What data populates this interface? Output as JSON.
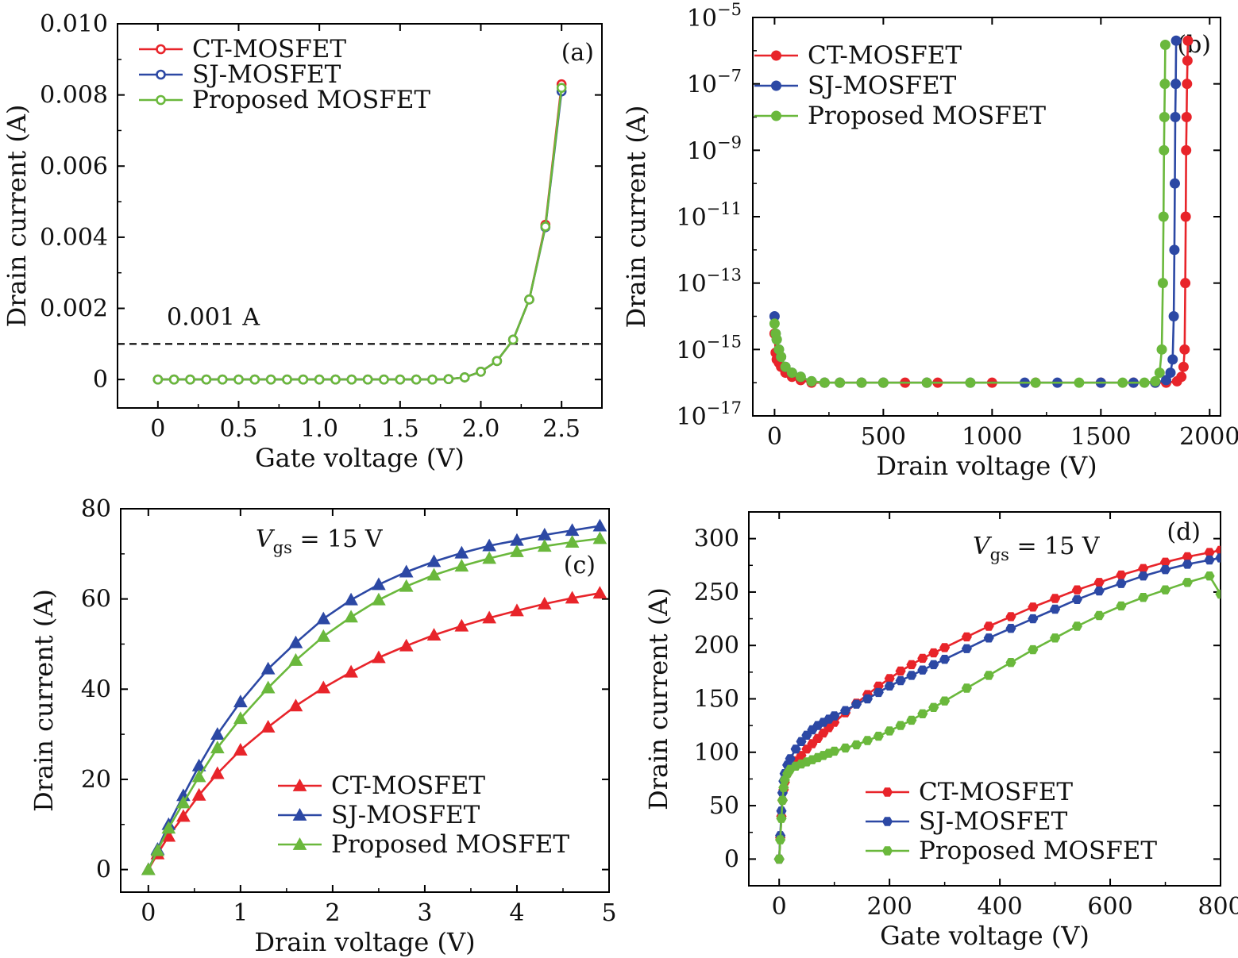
{
  "colors": {
    "ct": "#e8242a",
    "sj": "#2c48a4",
    "prop": "#6ab83c",
    "axis": "#000000"
  },
  "chart_data": [
    {
      "id": "a",
      "type": "line",
      "panel_label": "(a)",
      "xlabel": "Gate voltage (V)",
      "ylabel": "Drain current (A)",
      "xlim": [
        -0.25,
        2.75
      ],
      "ylim": [
        -0.0008,
        0.01
      ],
      "yscale": "linear",
      "x_ticks": [
        0,
        0.5,
        1.0,
        1.5,
        2.0,
        2.5
      ],
      "x_tick_labels": [
        "0",
        "0.5",
        "1.0",
        "1.5",
        "2.0",
        "2.5"
      ],
      "y_ticks": [
        0,
        0.002,
        0.004,
        0.006,
        0.008,
        0.01
      ],
      "y_tick_labels": [
        "0",
        "0.002",
        "0.004",
        "0.006",
        "0.008",
        "0.010"
      ],
      "marker": "open-circle",
      "legend_position": "top-left",
      "reference_line": {
        "y": 0.001,
        "label": "0.001 A",
        "style": "dashed"
      },
      "series": [
        {
          "name": "CT-MOSFET",
          "color": "#e8242a",
          "x": [
            0,
            0.1,
            0.2,
            0.3,
            0.4,
            0.5,
            0.6,
            0.7,
            0.8,
            0.9,
            1.0,
            1.1,
            1.2,
            1.3,
            1.4,
            1.5,
            1.6,
            1.7,
            1.8,
            1.9,
            2.0,
            2.1,
            2.2,
            2.3,
            2.4,
            2.5
          ],
          "y": [
            0,
            0,
            0,
            0,
            0,
            0,
            0,
            0,
            0,
            0,
            0,
            0,
            0,
            0,
            0,
            0,
            0,
            0,
            1e-05,
            6e-05,
            0.00022,
            0.00052,
            0.00112,
            0.00225,
            0.00435,
            0.0083
          ]
        },
        {
          "name": "SJ-MOSFET",
          "color": "#2c48a4",
          "x": [
            0,
            0.1,
            0.2,
            0.3,
            0.4,
            0.5,
            0.6,
            0.7,
            0.8,
            0.9,
            1.0,
            1.1,
            1.2,
            1.3,
            1.4,
            1.5,
            1.6,
            1.7,
            1.8,
            1.9,
            2.0,
            2.1,
            2.2,
            2.3,
            2.4,
            2.5
          ],
          "y": [
            0,
            0,
            0,
            0,
            0,
            0,
            0,
            0,
            0,
            0,
            0,
            0,
            0,
            0,
            0,
            0,
            0,
            0,
            1e-05,
            6e-05,
            0.00022,
            0.00052,
            0.00112,
            0.00225,
            0.00428,
            0.0081
          ]
        },
        {
          "name": "Proposed MOSFET",
          "color": "#6ab83c",
          "x": [
            0,
            0.1,
            0.2,
            0.3,
            0.4,
            0.5,
            0.6,
            0.7,
            0.8,
            0.9,
            1.0,
            1.1,
            1.2,
            1.3,
            1.4,
            1.5,
            1.6,
            1.7,
            1.8,
            1.9,
            2.0,
            2.1,
            2.2,
            2.3,
            2.4,
            2.5
          ],
          "y": [
            0,
            0,
            0,
            0,
            0,
            0,
            0,
            0,
            0,
            0,
            0,
            0,
            0,
            0,
            0,
            0,
            0,
            0,
            1e-05,
            6e-05,
            0.00022,
            0.00052,
            0.00112,
            0.00225,
            0.0043,
            0.0082
          ]
        }
      ]
    },
    {
      "id": "b",
      "type": "line",
      "panel_label": "(b)",
      "xlabel": "Drain voltage (V)",
      "ylabel": "Drain current (A)",
      "xlim": [
        -100,
        2050
      ],
      "ylim": [
        1e-17,
        1e-05
      ],
      "yscale": "log",
      "x_ticks": [
        0,
        500,
        1000,
        1500,
        2000
      ],
      "x_tick_labels": [
        "0",
        "500",
        "1000",
        "1500",
        "2000"
      ],
      "y_ticks": [
        1e-17,
        1e-15,
        1e-13,
        1e-11,
        1e-09,
        1e-07,
        1e-05
      ],
      "y_tick_bases": [
        "10",
        "10",
        "10",
        "10",
        "10",
        "10",
        "10"
      ],
      "y_tick_exponents": [
        "−17",
        "−15",
        "−13",
        "−11",
        "−9",
        "−7",
        "−5"
      ],
      "marker": "filled-circle",
      "legend_position": "top-left",
      "series": [
        {
          "name": "CT-MOSFET",
          "color": "#e8242a",
          "x": [
            0,
            5,
            10,
            20,
            30,
            50,
            80,
            120,
            170,
            230,
            300,
            400,
            500,
            600,
            700,
            750,
            1000,
            1200,
            1500,
            1650,
            1750,
            1800,
            1850,
            1870,
            1880,
            1885,
            1888,
            1890,
            1892,
            1894,
            1896,
            1898,
            1900
          ],
          "y": [
            3e-15,
            8e-16,
            5e-16,
            4e-16,
            3e-16,
            2e-16,
            1.5e-16,
            1.2e-16,
            1e-16,
            1e-16,
            1e-16,
            1e-16,
            1e-16,
            1e-16,
            1e-16,
            1e-16,
            1e-16,
            1e-16,
            1e-16,
            1e-16,
            1e-16,
            1e-16,
            1.1e-16,
            1.5e-16,
            3e-16,
            1e-15,
            1e-13,
            1e-11,
            1e-09,
            1e-08,
            1e-07,
            5e-07,
            2e-06
          ]
        },
        {
          "name": "SJ-MOSFET",
          "color": "#2c48a4",
          "x": [
            0,
            5,
            10,
            20,
            30,
            50,
            80,
            120,
            170,
            230,
            300,
            400,
            500,
            700,
            900,
            1150,
            1300,
            1500,
            1650,
            1750,
            1800,
            1820,
            1830,
            1835,
            1838,
            1840,
            1842,
            1844,
            1846
          ],
          "y": [
            1e-14,
            3e-15,
            2e-15,
            1e-15,
            6e-16,
            3e-16,
            2e-16,
            1.5e-16,
            1.1e-16,
            1e-16,
            1e-16,
            1e-16,
            1e-16,
            1e-16,
            1e-16,
            1e-16,
            1e-16,
            1e-16,
            1e-16,
            1e-16,
            1.2e-16,
            2e-16,
            5e-16,
            1e-14,
            1e-12,
            1e-10,
            1e-08,
            1e-07,
            2e-06
          ]
        },
        {
          "name": "Proposed MOSFET",
          "color": "#6ab83c",
          "x": [
            0,
            5,
            10,
            20,
            30,
            50,
            80,
            120,
            170,
            230,
            300,
            400,
            500,
            700,
            900,
            1200,
            1400,
            1600,
            1700,
            1750,
            1770,
            1780,
            1785,
            1788,
            1790,
            1792,
            1794,
            1796
          ],
          "y": [
            6e-15,
            3e-15,
            2e-15,
            1e-15,
            6e-16,
            3e-16,
            2e-16,
            1.5e-16,
            1.1e-16,
            1e-16,
            1e-16,
            1e-16,
            1e-16,
            1e-16,
            1e-16,
            1e-16,
            1e-16,
            1e-16,
            1e-16,
            1.1e-16,
            2e-16,
            1e-15,
            1e-13,
            1e-11,
            1e-09,
            1e-08,
            1e-07,
            1.5e-06
          ]
        }
      ]
    },
    {
      "id": "c",
      "type": "line",
      "panel_label": "(c)",
      "annotation": {
        "base": "V",
        "subscript": "gs",
        "rest": " = 15 V"
      },
      "xlabel": "Drain voltage (V)",
      "ylabel": "Drain current (A)",
      "xlim": [
        -0.3,
        5.0
      ],
      "ylim": [
        -5,
        80
      ],
      "yscale": "linear",
      "x_ticks": [
        0,
        1,
        2,
        3,
        4,
        5
      ],
      "x_tick_labels": [
        "0",
        "1",
        "2",
        "3",
        "4",
        "5"
      ],
      "y_ticks": [
        0,
        20,
        40,
        60,
        80
      ],
      "y_tick_labels": [
        "0",
        "20",
        "40",
        "60",
        "80"
      ],
      "marker": "filled-triangle",
      "legend_position": "bottom-right",
      "series": [
        {
          "name": "CT-MOSFET",
          "color": "#e8242a",
          "x": [
            0,
            0.1,
            0.22,
            0.38,
            0.55,
            0.75,
            1.0,
            1.3,
            1.6,
            1.9,
            2.2,
            2.5,
            2.8,
            3.1,
            3.4,
            3.7,
            4.0,
            4.3,
            4.6,
            4.9
          ],
          "y": [
            0,
            3.5,
            7.4,
            11.8,
            16.5,
            21.3,
            26.5,
            31.6,
            36.3,
            40.3,
            43.8,
            47.0,
            49.6,
            52.0,
            54.0,
            55.8,
            57.4,
            58.9,
            60.2,
            61.3
          ]
        },
        {
          "name": "SJ-MOSFET",
          "color": "#2c48a4",
          "x": [
            0,
            0.1,
            0.22,
            0.38,
            0.55,
            0.75,
            1.0,
            1.3,
            1.6,
            1.9,
            2.2,
            2.5,
            2.8,
            3.1,
            3.4,
            3.7,
            4.0,
            4.3,
            4.6,
            4.9
          ],
          "y": [
            0,
            4.5,
            10.0,
            16.4,
            23.0,
            30.0,
            37.2,
            44.5,
            50.3,
            55.6,
            59.8,
            63.2,
            66.0,
            68.3,
            70.2,
            71.8,
            73.0,
            74.2,
            75.2,
            76.2
          ]
        },
        {
          "name": "Proposed MOSFET",
          "color": "#6ab83c",
          "x": [
            0,
            0.1,
            0.22,
            0.38,
            0.55,
            0.75,
            1.0,
            1.3,
            1.6,
            1.9,
            2.2,
            2.5,
            2.8,
            3.1,
            3.4,
            3.7,
            4.0,
            4.3,
            4.6,
            4.9
          ],
          "y": [
            0,
            4.2,
            9.2,
            14.8,
            20.6,
            27.0,
            33.5,
            40.3,
            46.4,
            51.7,
            56.0,
            59.8,
            62.8,
            65.3,
            67.3,
            69.0,
            70.5,
            71.7,
            72.6,
            73.4
          ]
        }
      ]
    },
    {
      "id": "d",
      "type": "line",
      "panel_label": "(d)",
      "annotation": {
        "base": "V",
        "subscript": "gs",
        "rest": " = 15 V"
      },
      "xlabel": "Gate voltage (V)",
      "ylabel": "Drain current (A)",
      "xlim": [
        -55,
        800
      ],
      "ylim": [
        -25,
        325
      ],
      "yscale": "linear",
      "x_ticks": [
        0,
        200,
        400,
        600,
        800
      ],
      "x_tick_labels": [
        "0",
        "200",
        "400",
        "600",
        "800"
      ],
      "y_ticks": [
        0,
        50,
        100,
        150,
        200,
        250,
        300
      ],
      "y_tick_labels": [
        "0",
        "50",
        "100",
        "150",
        "200",
        "250",
        "300"
      ],
      "marker": "filled-hexagon",
      "legend_position": "bottom-right",
      "series": [
        {
          "name": "CT-MOSFET",
          "color": "#e8242a",
          "x": [
            0,
            2,
            4,
            6,
            8,
            10,
            15,
            20,
            30,
            40,
            50,
            60,
            70,
            80,
            90,
            100,
            120,
            140,
            160,
            180,
            200,
            220,
            240,
            260,
            280,
            300,
            340,
            380,
            420,
            460,
            500,
            540,
            580,
            620,
            660,
            700,
            740,
            780,
            800
          ],
          "y": [
            0,
            20,
            40,
            55,
            65,
            72,
            80,
            85,
            92,
            97,
            103,
            108,
            113,
            118,
            123,
            128,
            137,
            146,
            154,
            162,
            169,
            176,
            182,
            188,
            193,
            198,
            208,
            218,
            227,
            236,
            244,
            252,
            259,
            266,
            272,
            278,
            283,
            287,
            289
          ]
        },
        {
          "name": "SJ-MOSFET",
          "color": "#2c48a4",
          "x": [
            0,
            2,
            4,
            6,
            8,
            10,
            15,
            20,
            30,
            40,
            50,
            60,
            70,
            80,
            90,
            100,
            120,
            140,
            160,
            180,
            200,
            220,
            240,
            260,
            280,
            300,
            340,
            380,
            420,
            460,
            500,
            540,
            580,
            620,
            660,
            700,
            740,
            780,
            800
          ],
          "y": [
            0,
            22,
            45,
            62,
            73,
            80,
            88,
            94,
            103,
            110,
            116,
            121,
            125,
            128,
            131,
            134,
            139,
            145,
            150,
            156,
            162,
            167,
            172,
            177,
            182,
            187,
            197,
            207,
            216,
            225,
            234,
            243,
            251,
            258,
            265,
            271,
            276,
            280,
            282
          ]
        },
        {
          "name": "Proposed MOSFET",
          "color": "#6ab83c",
          "x": [
            0,
            2,
            4,
            6,
            8,
            10,
            15,
            20,
            30,
            40,
            50,
            60,
            70,
            80,
            90,
            100,
            120,
            140,
            160,
            180,
            200,
            220,
            240,
            260,
            280,
            300,
            340,
            380,
            420,
            460,
            500,
            540,
            580,
            620,
            660,
            700,
            740,
            780,
            800
          ],
          "y": [
            0,
            18,
            38,
            55,
            67,
            74,
            80,
            84,
            87,
            89,
            91,
            93,
            95,
            97,
            99,
            101,
            104,
            107,
            111,
            115,
            120,
            125,
            130,
            136,
            142,
            148,
            160,
            172,
            184,
            196,
            207,
            218,
            228,
            237,
            245,
            252,
            259,
            265,
            248
          ]
        }
      ]
    }
  ]
}
